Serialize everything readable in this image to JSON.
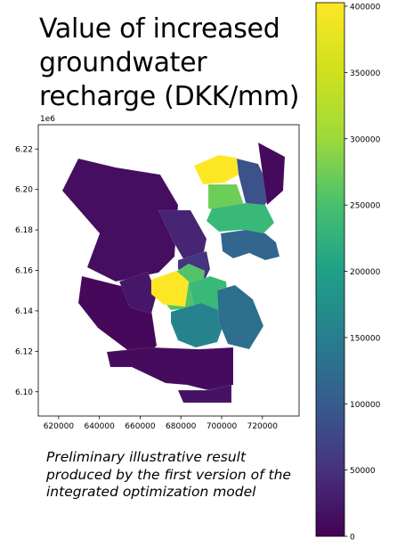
{
  "title_lines": [
    "Value of increased",
    "groundwater",
    "recharge (DKK/mm)"
  ],
  "caption_lines": [
    "Preliminary illustrative result",
    "produced by the first version of the",
    "integrated optimization model"
  ],
  "axis_offset_label": "1e6",
  "x_ticks": [
    "620000",
    "640000",
    "660000",
    "680000",
    "700000",
    "720000"
  ],
  "y_ticks": [
    "6.10",
    "6.12",
    "6.14",
    "6.16",
    "6.18",
    "6.20",
    "6.22"
  ],
  "colorbar": {
    "ticks": [
      "0",
      "50000",
      "100000",
      "150000",
      "200000",
      "250000",
      "300000",
      "350000",
      "400000"
    ],
    "min": 0,
    "max": 400000,
    "colormap": "viridis"
  },
  "chart_data": {
    "type": "heatmap",
    "subtype": "choropleth",
    "x_range": [
      610000,
      738000
    ],
    "y_range": [
      6088000,
      6232000
    ],
    "value_range": [
      0,
      400000
    ],
    "regions": [
      {
        "value": 15000
      },
      {
        "value": 8000
      },
      {
        "value": 40000
      },
      {
        "value": 25000
      },
      {
        "value": 400000
      },
      {
        "value": 310000
      },
      {
        "value": 100000
      },
      {
        "value": 270000
      },
      {
        "value": 130000
      },
      {
        "value": 60000
      },
      {
        "value": 290000
      },
      {
        "value": 400000
      },
      {
        "value": 270000
      },
      {
        "value": 180000
      },
      {
        "value": 145000
      },
      {
        "value": 12000
      },
      {
        "value": 20000
      },
      {
        "value": 10000
      }
    ]
  }
}
